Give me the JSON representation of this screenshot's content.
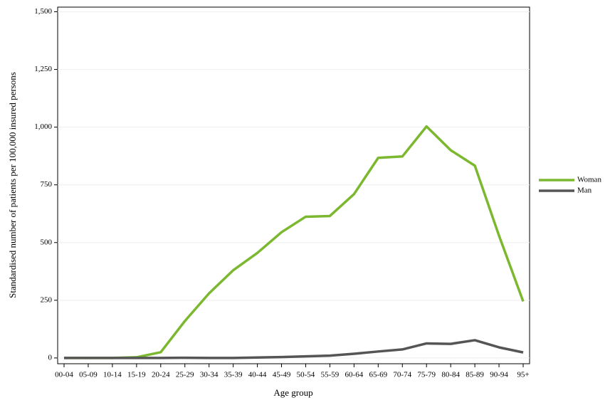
{
  "chart_data": {
    "type": "line",
    "x_label": "Age group",
    "y_label": "Standardised number of patients per 100,000 insured persons",
    "categories": [
      "00-04",
      "05-09",
      "10-14",
      "15-19",
      "20-24",
      "25-29",
      "30-34",
      "35-39",
      "40-44",
      "45-49",
      "50-54",
      "55-59",
      "60-64",
      "65-69",
      "70-74",
      "75-79",
      "80-84",
      "85-89",
      "90-94",
      "95+"
    ],
    "series": [
      {
        "name": "Woman",
        "color": "#7cb82f",
        "values": [
          0,
          0,
          0,
          3,
          25,
          160,
          280,
          380,
          455,
          545,
          612,
          615,
          710,
          867,
          873,
          1003,
          900,
          833,
          530,
          245
        ]
      },
      {
        "name": "Man",
        "color": "#555555",
        "values": [
          0,
          0,
          0,
          0,
          0,
          1,
          0,
          0,
          2,
          4,
          7,
          10,
          18,
          28,
          37,
          63,
          61,
          77,
          46,
          24
        ]
      }
    ],
    "ylim": [
      -25,
      1520
    ],
    "yticks": [
      0,
      250,
      500,
      750,
      {
        "value": 1000,
        "label": "1,000"
      },
      {
        "value": 1250,
        "label": "1,250"
      },
      {
        "value": 1500,
        "label": "1,500"
      }
    ],
    "grid": true,
    "legend": "right"
  }
}
